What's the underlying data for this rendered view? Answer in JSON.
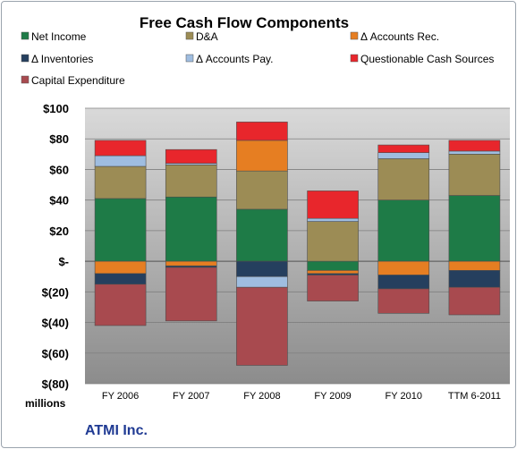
{
  "chart_data": {
    "type": "bar",
    "stacked": true,
    "title": "Free Cash Flow Components",
    "unit_label": "millions",
    "company": "ATMI Inc.",
    "categories": [
      "FY 2006",
      "FY 2007",
      "FY 2008",
      "FY 2009",
      "FY 2010",
      "TTM 6-2011"
    ],
    "ylim": [
      -80,
      100
    ],
    "yticks": [
      {
        "v": 100,
        "label": "$100"
      },
      {
        "v": 80,
        "label": "$80"
      },
      {
        "v": 60,
        "label": "$60"
      },
      {
        "v": 40,
        "label": "$40"
      },
      {
        "v": 20,
        "label": "$20"
      },
      {
        "v": 0,
        "label": "$-"
      },
      {
        "v": -20,
        "label": "$(20)"
      },
      {
        "v": -40,
        "label": "$(40)"
      },
      {
        "v": -60,
        "label": "$(60)"
      },
      {
        "v": -80,
        "label": "$(80)"
      }
    ],
    "grid": true,
    "legend_position": "top",
    "series": [
      {
        "name": "Net Income",
        "color": "#1e7b47",
        "values": [
          41,
          42,
          34,
          -6,
          40,
          43
        ]
      },
      {
        "name": "D&A",
        "color": "#9c8c55",
        "values": [
          21,
          21,
          25,
          26,
          27,
          27
        ]
      },
      {
        "name": "Δ Accounts Rec.",
        "color": "#e67e22",
        "values": [
          -8,
          -3,
          20,
          -2,
          -9,
          -6
        ]
      },
      {
        "name": "Δ Inventories",
        "color": "#253f5e",
        "values": [
          -7,
          -1,
          -10,
          -1,
          -9,
          -11
        ]
      },
      {
        "name": "Δ Accounts Pay.",
        "color": "#9fbde0",
        "values": [
          7,
          1,
          -7,
          2,
          4,
          2
        ]
      },
      {
        "name": "Questionable Cash Sources",
        "color": "#e8262c",
        "values": [
          10,
          9,
          12,
          18,
          5,
          7
        ]
      },
      {
        "name": "Capital Expenditure",
        "color": "#a84a4f",
        "values": [
          -27,
          -35,
          -51,
          -17,
          -16,
          -18
        ]
      }
    ]
  }
}
